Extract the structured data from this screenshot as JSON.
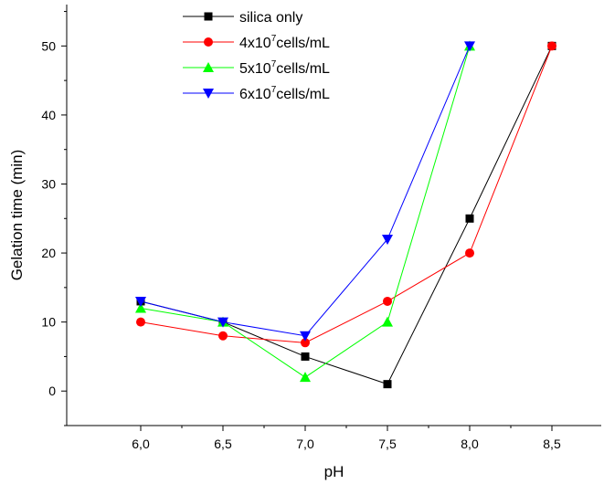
{
  "chart_data": {
    "type": "line",
    "title": "",
    "xlabel": "pH",
    "ylabel": "Gelation time (min)",
    "xlim": [
      5.55,
      8.8
    ],
    "ylim": [
      -5,
      56
    ],
    "x_ticks": [
      "6,0",
      "6,5",
      "7,0",
      "7,5",
      "8,0",
      "8,5"
    ],
    "y_ticks": [
      "0",
      "10",
      "20",
      "30",
      "40",
      "50"
    ],
    "grid": false,
    "legend_position": "top-center",
    "series": [
      {
        "name": "silica only",
        "label_base": "silica only",
        "label_sup": "",
        "label_tail": "",
        "color": "#000000",
        "marker": "square",
        "points": [
          [
            6.0,
            13
          ],
          [
            6.5,
            10
          ],
          [
            7.0,
            5
          ],
          [
            7.5,
            1
          ],
          [
            8.0,
            25
          ],
          [
            8.5,
            50
          ]
        ]
      },
      {
        "name": "4x10^7cells/mL",
        "label_base": "4x10",
        "label_sup": "7",
        "label_tail": "cells/mL",
        "color": "#ff0000",
        "marker": "circle",
        "points": [
          [
            6.0,
            10
          ],
          [
            6.5,
            8
          ],
          [
            7.0,
            7
          ],
          [
            7.5,
            13
          ],
          [
            8.0,
            20
          ],
          [
            8.5,
            50
          ]
        ]
      },
      {
        "name": "5x10^7cells/mL",
        "label_base": "5x10",
        "label_sup": "7",
        "label_tail": "cells/mL",
        "color": "#00ff00",
        "marker": "triangle-up",
        "points": [
          [
            6.0,
            12
          ],
          [
            6.5,
            10
          ],
          [
            7.0,
            2
          ],
          [
            7.5,
            10
          ],
          [
            8.0,
            50
          ]
        ]
      },
      {
        "name": "6x10^7cells/mL",
        "label_base": "6x10",
        "label_sup": "7",
        "label_tail": "cells/mL",
        "color": "#0000ff",
        "marker": "triangle-down",
        "points": [
          [
            6.0,
            13
          ],
          [
            6.5,
            10
          ],
          [
            7.0,
            8
          ],
          [
            7.5,
            22
          ],
          [
            8.0,
            50
          ]
        ]
      }
    ]
  }
}
